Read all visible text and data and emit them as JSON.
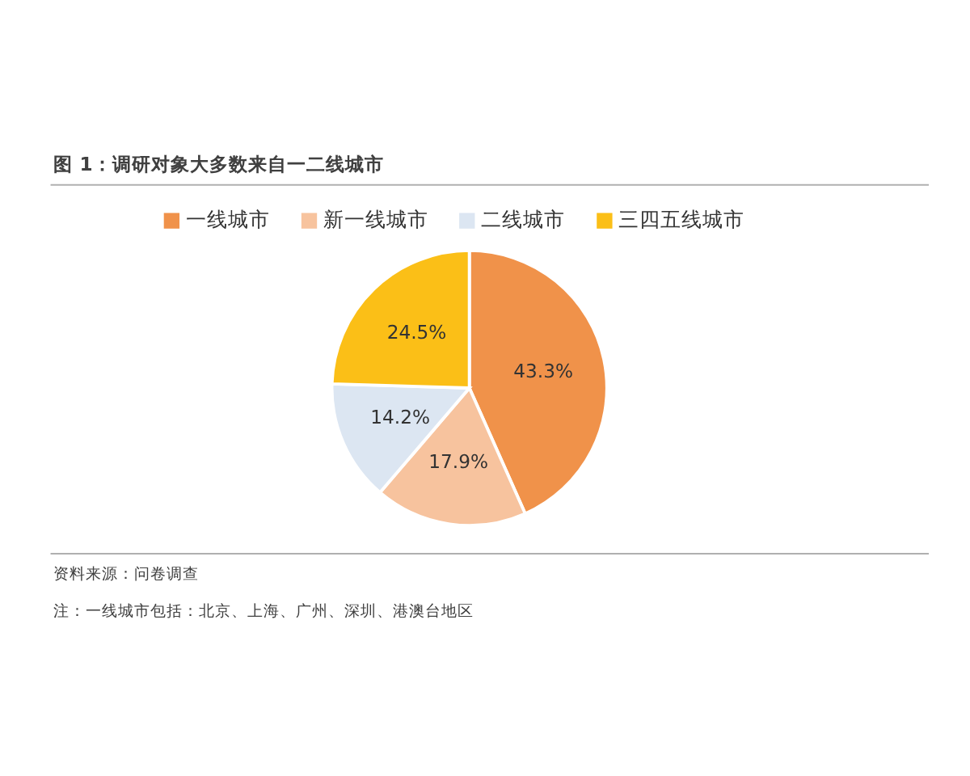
{
  "chart_data": {
    "type": "pie",
    "title": "图 1：调研对象大多数来自一二线城市",
    "categories": [
      "一线城市",
      "新一线城市",
      "二线城市",
      "三四五线城市"
    ],
    "values": [
      43.3,
      17.9,
      14.2,
      24.5
    ],
    "colors": [
      "#f0924a",
      "#f7c39e",
      "#dce6f2",
      "#fbbf17"
    ],
    "value_labels": [
      "43.3%",
      "17.9%",
      "14.2%",
      "24.5%"
    ],
    "legend": "top",
    "annotations": [
      "资料来源：问卷调查",
      "注：一线城市包括：北京、上海、广州、深圳、港澳台地区"
    ]
  }
}
